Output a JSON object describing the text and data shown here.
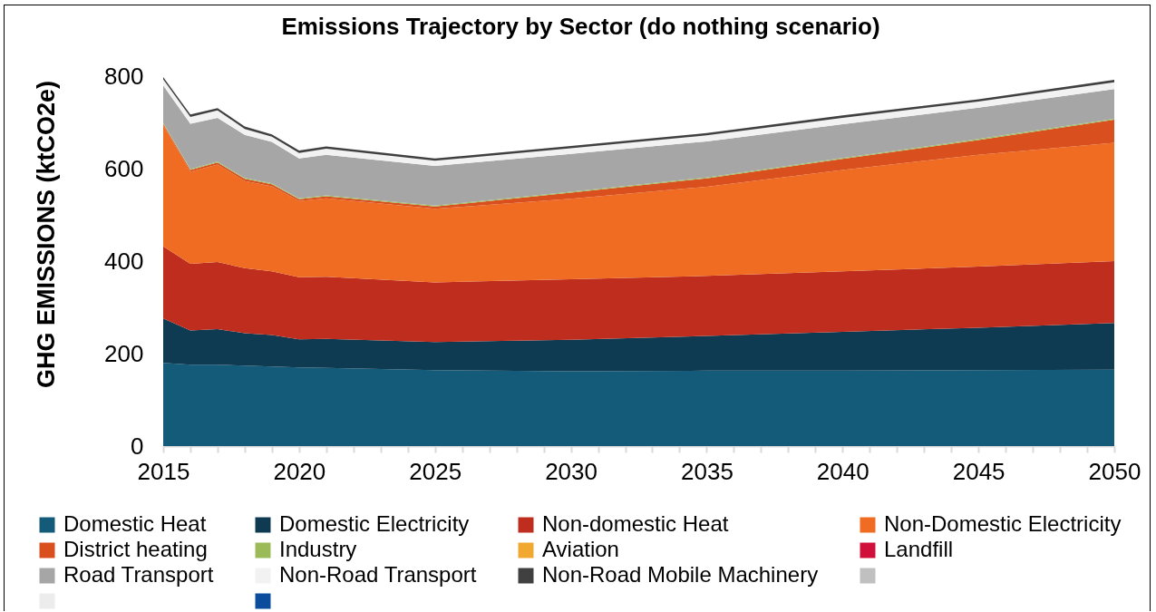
{
  "chart_data": {
    "type": "area",
    "stacked": true,
    "title": "Emissions Trajectory by Sector (do nothing scenario)",
    "ylabel": "GHG EMISSIONS (ktCO2e)",
    "x": [
      2015,
      2016,
      2017,
      2018,
      2019,
      2020,
      2021,
      2025,
      2030,
      2035,
      2040,
      2045,
      2050
    ],
    "series": [
      {
        "name": "Domestic Heat",
        "color": "#135b78",
        "values": [
          180,
          176,
          176,
          174,
          172,
          170,
          169,
          164,
          162,
          163,
          163,
          164,
          165
        ]
      },
      {
        "name": "Domestic Electricity",
        "color": "#0e3a52",
        "values": [
          96,
          74,
          77,
          70,
          68,
          61,
          63,
          61,
          68,
          75,
          84,
          92,
          101
        ]
      },
      {
        "name": "Non-domestic Heat",
        "color": "#bf2d1f",
        "values": [
          156,
          144,
          145,
          141,
          138,
          134,
          134,
          129,
          131,
          130,
          131,
          132,
          134
        ]
      },
      {
        "name": "Non-Domestic Electricity",
        "color": "#ef6c22",
        "values": [
          262,
          199,
          211,
          188,
          184,
          165,
          170,
          159,
          174,
          193,
          219,
          242,
          256
        ]
      },
      {
        "name": "District heating",
        "color": "#d94f1e",
        "values": [
          3,
          4,
          4,
          5,
          4,
          4,
          4,
          5,
          13,
          18,
          24,
          32,
          50
        ]
      },
      {
        "name": "Industry",
        "color": "#9bbb59",
        "values": [
          2,
          2,
          2,
          2,
          2,
          2,
          2,
          2,
          2,
          2,
          2,
          2,
          2
        ]
      },
      {
        "name": "Aviation",
        "color": "#f0a830",
        "values": [
          null,
          null,
          null,
          null,
          null,
          null,
          null,
          null,
          null,
          null,
          null,
          null,
          null
        ]
      },
      {
        "name": "Landfill",
        "color": "#d0103a",
        "values": [
          null,
          null,
          null,
          null,
          null,
          null,
          null,
          null,
          null,
          null,
          null,
          null,
          null
        ]
      },
      {
        "name": "Road Transport",
        "color": "#a6a6a6",
        "values": [
          81,
          98,
          95,
          93,
          90,
          86,
          88,
          86,
          82,
          78,
          73,
          68,
          64
        ]
      },
      {
        "name": "Non-Road Transport",
        "color": "#f2f2f2",
        "values": [
          13,
          15,
          16,
          13,
          11,
          12,
          13,
          11,
          12,
          13,
          14,
          13,
          15
        ]
      },
      {
        "name": "Non-Road Mobile Machinery",
        "color": "#404040",
        "values": [
          5,
          5,
          5,
          5,
          5,
          5,
          5,
          5,
          5,
          5,
          5,
          5,
          5
        ]
      },
      {
        "color": "#c0c0c0",
        "values": [
          null,
          null,
          null,
          null,
          null,
          null,
          null,
          null,
          null,
          null,
          null,
          null,
          null
        ]
      },
      {
        "color": "#ececec",
        "values": [
          null,
          null,
          null,
          null,
          null,
          null,
          null,
          null,
          null,
          null,
          null,
          null,
          null
        ]
      },
      {
        "color": "#0b4c9c",
        "values": [
          null,
          null,
          null,
          null,
          null,
          null,
          null,
          null,
          null,
          null,
          null,
          null,
          null
        ]
      }
    ],
    "xlim": [
      2015,
      2050
    ],
    "xticks": [
      2015,
      {
        "value": 2016,
        "label": null
      },
      {
        "value": 2017,
        "label": null
      },
      {
        "value": 2018,
        "label": null
      },
      {
        "value": 2019,
        "label": null
      },
      2020,
      {
        "value": 2021,
        "label": null
      },
      {
        "value": 2022,
        "label": null
      },
      {
        "value": 2023,
        "label": null
      },
      {
        "value": 2024,
        "label": null
      },
      2025,
      {
        "value": 2026,
        "label": null
      },
      {
        "value": 2027,
        "label": null
      },
      {
        "value": 2028,
        "label": null
      },
      {
        "value": 2029,
        "label": null
      },
      2030,
      {
        "value": 2031,
        "label": null
      },
      {
        "value": 2032,
        "label": null
      },
      {
        "value": 2033,
        "label": null
      },
      {
        "value": 2034,
        "label": null
      },
      2035,
      {
        "value": 2036,
        "label": null
      },
      {
        "value": 2037,
        "label": null
      },
      {
        "value": 2038,
        "label": null
      },
      {
        "value": 2039,
        "label": null
      },
      2040,
      {
        "value": 2041,
        "label": null
      },
      {
        "value": 2042,
        "label": null
      },
      {
        "value": 2043,
        "label": null
      },
      {
        "value": 2044,
        "label": null
      },
      2045,
      {
        "value": 2046,
        "label": null
      },
      {
        "value": 2047,
        "label": null
      },
      {
        "value": 2048,
        "label": null
      },
      {
        "value": 2049,
        "label": null
      },
      2050
    ],
    "ylim": [
      0,
      800
    ],
    "yticks": [
      0,
      200,
      400,
      600,
      800
    ],
    "grid": false,
    "legend": "bottom"
  }
}
